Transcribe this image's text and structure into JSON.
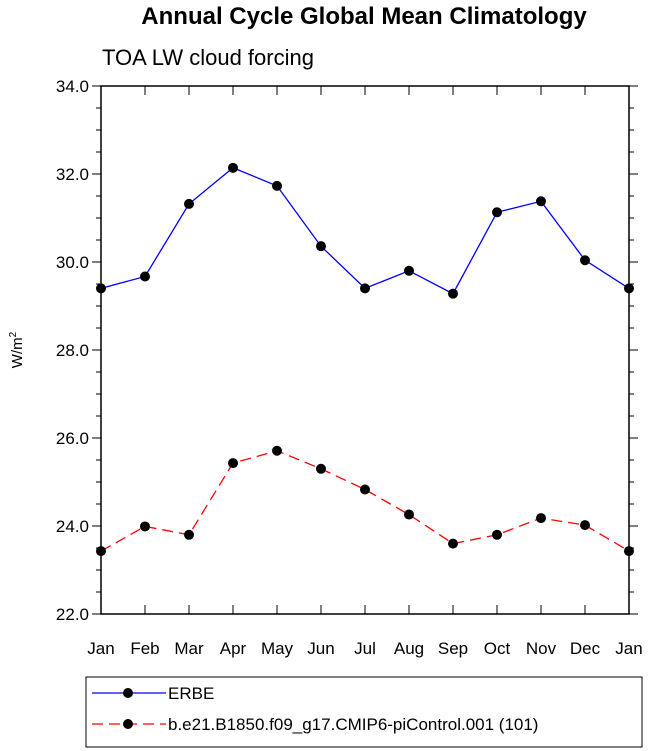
{
  "chart_data": {
    "type": "line",
    "title": "Annual Cycle Global Mean Climatology",
    "subtitle": "TOA LW cloud forcing",
    "ylabel_base": "W/m",
    "ylabel_sup": "2",
    "xlabel": "",
    "categories": [
      "Jan",
      "Feb",
      "Mar",
      "Apr",
      "May",
      "Jun",
      "Jul",
      "Aug",
      "Sep",
      "Oct",
      "Nov",
      "Dec",
      "Jan"
    ],
    "ylim": [
      22.0,
      34.0
    ],
    "yticks": [
      "22.0",
      "24.0",
      "26.0",
      "28.0",
      "30.0",
      "32.0",
      "34.0"
    ],
    "grid": false,
    "legend_position": "bottom",
    "series": [
      {
        "name": "ERBE",
        "color": "#0000ff",
        "dash": "solid",
        "values": [
          29.4,
          29.67,
          31.32,
          32.14,
          31.73,
          30.36,
          29.4,
          29.8,
          29.28,
          31.13,
          31.38,
          30.04,
          29.4
        ]
      },
      {
        "name": "b.e21.B1850.f09_g17.CMIP6-piControl.001 (101)",
        "color": "#ff0000",
        "dash": "dashed",
        "values": [
          23.43,
          23.99,
          23.8,
          25.43,
          25.71,
          25.3,
          24.83,
          24.26,
          23.6,
          23.8,
          24.18,
          24.02,
          23.43
        ]
      }
    ]
  }
}
